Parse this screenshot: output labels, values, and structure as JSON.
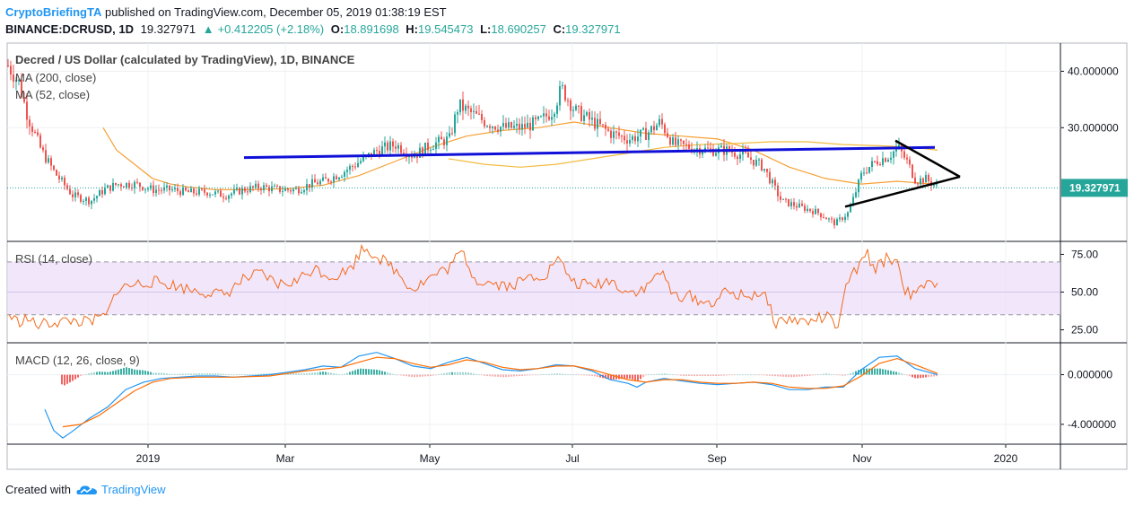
{
  "header": {
    "author": "CryptoBriefingTA",
    "published_text": "published on TradingView.com, December 05, 2019 01:38:19 EST",
    "symbol": "BINANCE:DCRUSD, 1D",
    "last": "19.327971",
    "change": "+0.412205 (+2.18%)",
    "open_label": "O:",
    "open": "18.891698",
    "high_label": "H:",
    "high": "19.545473",
    "low_label": "L:",
    "low": "18.690257",
    "close_label": "C:",
    "close": "19.327971"
  },
  "footer": {
    "created_with": "Created with",
    "brand": "TradingView"
  },
  "colors": {
    "up": "#26a69a",
    "down": "#ef5350",
    "ma200": "#f7a035",
    "ma52": "#f0b429",
    "trend_blue": "#1010d8",
    "triangle": "#000000",
    "rsi": "#f26b1d",
    "macd": "#2196f3",
    "signal": "#ff6d00",
    "rsi_band": "#ecdcfa"
  },
  "chart_data": [
    {
      "type": "candlestick",
      "title": "Decred / US Dollar (calculated by TradingView), 1D, BINANCE",
      "indicators": [
        "MA (200, close)",
        "MA (52, close)"
      ],
      "ylim": [
        10,
        45
      ],
      "yticks": [
        "40.000000",
        "30.000000"
      ],
      "ytick_values": [
        40,
        30
      ],
      "last_price_label": "19.327971",
      "last_price": 19.33,
      "xlabels": [
        "2019",
        "Mar",
        "May",
        "Jul",
        "Sep",
        "Nov",
        "2020"
      ],
      "price_path": [
        [
          0,
          42
        ],
        [
          8,
          41
        ],
        [
          20,
          38
        ],
        [
          30,
          32
        ],
        [
          45,
          26
        ],
        [
          60,
          22
        ],
        [
          80,
          18
        ],
        [
          100,
          17
        ],
        [
          115,
          19
        ],
        [
          130,
          20
        ],
        [
          150,
          20
        ],
        [
          170,
          19
        ],
        [
          190,
          19
        ],
        [
          210,
          18.5
        ],
        [
          230,
          18.6
        ],
        [
          250,
          18
        ],
        [
          270,
          19
        ],
        [
          290,
          19.5
        ],
        [
          310,
          19
        ],
        [
          330,
          19
        ],
        [
          345,
          20
        ],
        [
          360,
          20.5
        ],
        [
          380,
          22
        ],
        [
          400,
          24
        ],
        [
          420,
          26
        ],
        [
          440,
          27
        ],
        [
          460,
          25
        ],
        [
          480,
          27
        ],
        [
          500,
          28
        ],
        [
          510,
          34
        ],
        [
          520,
          33
        ],
        [
          540,
          31
        ],
        [
          560,
          30
        ],
        [
          580,
          30
        ],
        [
          600,
          31
        ],
        [
          615,
          33
        ],
        [
          625,
          37
        ],
        [
          640,
          33
        ],
        [
          660,
          31
        ],
        [
          680,
          29
        ],
        [
          700,
          28
        ],
        [
          720,
          29
        ],
        [
          735,
          31
        ],
        [
          750,
          27
        ],
        [
          770,
          26.5
        ],
        [
          790,
          26
        ],
        [
          810,
          26
        ],
        [
          830,
          25
        ],
        [
          850,
          23
        ],
        [
          870,
          17
        ],
        [
          890,
          16
        ],
        [
          910,
          15
        ],
        [
          930,
          13
        ],
        [
          945,
          15
        ],
        [
          960,
          22
        ],
        [
          975,
          24
        ],
        [
          990,
          25
        ],
        [
          1000,
          26.5
        ],
        [
          1010,
          24
        ],
        [
          1020,
          20.5
        ],
        [
          1030,
          21
        ],
        [
          1045,
          19.3
        ]
      ],
      "ma200": [
        [
          115,
          30
        ],
        [
          130,
          26
        ],
        [
          150,
          23.5
        ],
        [
          170,
          21
        ],
        [
          190,
          20
        ],
        [
          210,
          19.5
        ],
        [
          240,
          19
        ],
        [
          280,
          19
        ],
        [
          320,
          19.2
        ],
        [
          360,
          19.8
        ],
        [
          400,
          21.5
        ],
        [
          440,
          24
        ],
        [
          480,
          26.5
        ],
        [
          520,
          28.5
        ],
        [
          560,
          29.5
        ],
        [
          600,
          30
        ],
        [
          640,
          31
        ],
        [
          680,
          30
        ],
        [
          720,
          29
        ],
        [
          760,
          28.5
        ],
        [
          800,
          28
        ],
        [
          840,
          26
        ],
        [
          880,
          23
        ],
        [
          920,
          21
        ],
        [
          960,
          20
        ],
        [
          1000,
          20.5
        ],
        [
          1040,
          20
        ]
      ],
      "ma52": [
        [
          500,
          24.5
        ],
        [
          540,
          23.5
        ],
        [
          580,
          23
        ],
        [
          620,
          23.5
        ],
        [
          660,
          24.5
        ],
        [
          700,
          25.5
        ],
        [
          740,
          26.5
        ],
        [
          780,
          27
        ],
        [
          820,
          27.2
        ],
        [
          860,
          27.5
        ],
        [
          900,
          27.5
        ],
        [
          940,
          27
        ],
        [
          980,
          26.8
        ],
        [
          1020,
          26.5
        ],
        [
          1045,
          26
        ]
      ],
      "annotations": {
        "horizontal_resistance": [
          [
            272,
            24.7
          ],
          [
            1042,
            26.5
          ]
        ],
        "triangle": [
          [
            998,
            27.7
          ],
          [
            1070,
            21.3
          ],
          [
            942,
            16
          ],
          [
            1070,
            21.3
          ]
        ]
      }
    },
    {
      "type": "line",
      "title": "RSI (14, close)",
      "ylim": [
        17,
        83
      ],
      "yticks": [
        "75.00",
        "50.00",
        "25.00"
      ],
      "ytick_values": [
        75,
        50,
        25
      ],
      "band": [
        35,
        70
      ],
      "series": [
        [
          10,
          35
        ],
        [
          20,
          30
        ],
        [
          30,
          33
        ],
        [
          40,
          28
        ],
        [
          60,
          30
        ],
        [
          80,
          31
        ],
        [
          100,
          30
        ],
        [
          120,
          35
        ],
        [
          130,
          52
        ],
        [
          150,
          55
        ],
        [
          170,
          57
        ],
        [
          190,
          55
        ],
        [
          210,
          52
        ],
        [
          230,
          50
        ],
        [
          250,
          48
        ],
        [
          270,
          58
        ],
        [
          290,
          62
        ],
        [
          310,
          55
        ],
        [
          330,
          57
        ],
        [
          350,
          66
        ],
        [
          370,
          60
        ],
        [
          390,
          65
        ],
        [
          405,
          80
        ],
        [
          420,
          74
        ],
        [
          440,
          65
        ],
        [
          460,
          52
        ],
        [
          480,
          60
        ],
        [
          500,
          66
        ],
        [
          515,
          77
        ],
        [
          530,
          58
        ],
        [
          550,
          56
        ],
        [
          570,
          54
        ],
        [
          590,
          60
        ],
        [
          610,
          62
        ],
        [
          620,
          73
        ],
        [
          640,
          56
        ],
        [
          660,
          54
        ],
        [
          680,
          58
        ],
        [
          700,
          50
        ],
        [
          720,
          52
        ],
        [
          735,
          65
        ],
        [
          750,
          48
        ],
        [
          770,
          47
        ],
        [
          790,
          42
        ],
        [
          810,
          50
        ],
        [
          830,
          47
        ],
        [
          850,
          50
        ],
        [
          865,
          30
        ],
        [
          880,
          32
        ],
        [
          900,
          30
        ],
        [
          920,
          34
        ],
        [
          935,
          27
        ],
        [
          945,
          58
        ],
        [
          960,
          68
        ],
        [
          965,
          78
        ],
        [
          975,
          65
        ],
        [
          990,
          73
        ],
        [
          1000,
          70
        ],
        [
          1010,
          50
        ],
        [
          1020,
          47
        ],
        [
          1030,
          55
        ],
        [
          1045,
          53
        ]
      ]
    },
    {
      "type": "macd",
      "title": "MACD (12, 26, close, 9)",
      "ylim": [
        -5.6,
        2.5
      ],
      "yticks": [
        "0.000000",
        "-4.000000"
      ],
      "ytick_values": [
        0,
        -4
      ],
      "macd": [
        [
          50,
          -2.8
        ],
        [
          60,
          -4.5
        ],
        [
          70,
          -5.1
        ],
        [
          80,
          -4.6
        ],
        [
          100,
          -3.5
        ],
        [
          120,
          -2.6
        ],
        [
          140,
          -1.2
        ],
        [
          160,
          -0.6
        ],
        [
          180,
          -0.3
        ],
        [
          200,
          -0.2
        ],
        [
          220,
          -0.1
        ],
        [
          240,
          -0.1
        ],
        [
          260,
          -0.2
        ],
        [
          280,
          -0.1
        ],
        [
          300,
          0
        ],
        [
          320,
          0.2
        ],
        [
          340,
          0.4
        ],
        [
          360,
          0.7
        ],
        [
          380,
          0.6
        ],
        [
          400,
          1.5
        ],
        [
          420,
          1.8
        ],
        [
          440,
          1.3
        ],
        [
          460,
          0.7
        ],
        [
          480,
          0.5
        ],
        [
          500,
          1
        ],
        [
          520,
          1.4
        ],
        [
          540,
          0.9
        ],
        [
          560,
          0.4
        ],
        [
          580,
          0.3
        ],
        [
          600,
          0.5
        ],
        [
          620,
          0.8
        ],
        [
          640,
          0.7
        ],
        [
          660,
          0.3
        ],
        [
          680,
          -0.4
        ],
        [
          700,
          -0.7
        ],
        [
          710,
          -1
        ],
        [
          720,
          -0.6
        ],
        [
          740,
          -0.3
        ],
        [
          760,
          -0.5
        ],
        [
          780,
          -0.7
        ],
        [
          800,
          -0.8
        ],
        [
          820,
          -0.7
        ],
        [
          840,
          -0.6
        ],
        [
          860,
          -0.8
        ],
        [
          880,
          -1.2
        ],
        [
          900,
          -1.2
        ],
        [
          920,
          -1
        ],
        [
          940,
          -1
        ],
        [
          960,
          0.4
        ],
        [
          980,
          1.4
        ],
        [
          1000,
          1.5
        ],
        [
          1020,
          0.5
        ],
        [
          1045,
          0
        ]
      ],
      "signal": [
        [
          70,
          -4.2
        ],
        [
          90,
          -4
        ],
        [
          110,
          -3.3
        ],
        [
          130,
          -2.3
        ],
        [
          150,
          -1.3
        ],
        [
          170,
          -0.6
        ],
        [
          190,
          -0.3
        ],
        [
          220,
          -0.2
        ],
        [
          260,
          -0.2
        ],
        [
          300,
          -0.1
        ],
        [
          340,
          0.3
        ],
        [
          380,
          0.6
        ],
        [
          400,
          1
        ],
        [
          420,
          1.4
        ],
        [
          440,
          1.3
        ],
        [
          460,
          0.9
        ],
        [
          480,
          0.6
        ],
        [
          500,
          0.8
        ],
        [
          520,
          1.2
        ],
        [
          540,
          1
        ],
        [
          560,
          0.6
        ],
        [
          580,
          0.4
        ],
        [
          600,
          0.5
        ],
        [
          620,
          0.7
        ],
        [
          640,
          0.7
        ],
        [
          660,
          0.4
        ],
        [
          680,
          0
        ],
        [
          700,
          -0.4
        ],
        [
          720,
          -0.6
        ],
        [
          740,
          -0.4
        ],
        [
          760,
          -0.4
        ],
        [
          780,
          -0.6
        ],
        [
          800,
          -0.7
        ],
        [
          820,
          -0.7
        ],
        [
          840,
          -0.6
        ],
        [
          860,
          -0.7
        ],
        [
          880,
          -1
        ],
        [
          900,
          -1.1
        ],
        [
          920,
          -1.1
        ],
        [
          940,
          -0.9
        ],
        [
          960,
          -0.1
        ],
        [
          980,
          0.9
        ],
        [
          1000,
          1.3
        ],
        [
          1020,
          0.8
        ],
        [
          1045,
          0.1
        ]
      ]
    }
  ]
}
